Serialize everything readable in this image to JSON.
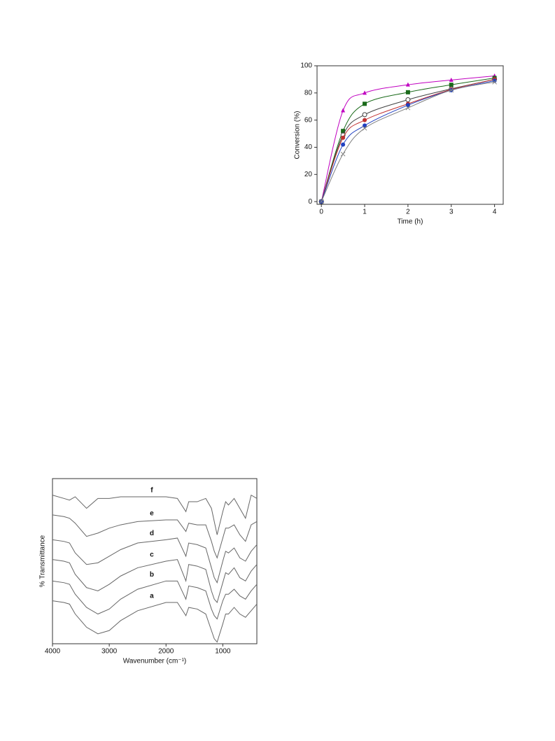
{
  "chart_data": [
    {
      "type": "line",
      "smooth": true,
      "xlabel": "Time (h)",
      "ylabel": "Conversion (%)",
      "x": [
        0,
        0.5,
        1,
        2,
        3,
        4
      ],
      "series": [
        {
          "color": "#c000c0",
          "marker": "triangle",
          "values": [
            0,
            67,
            80,
            86,
            89.5,
            92.5
          ]
        },
        {
          "color": "#1a6a1a",
          "marker": "square",
          "values": [
            0,
            52,
            72,
            80.5,
            86,
            91
          ]
        },
        {
          "color": "#404040",
          "marker": "open-circle",
          "values": [
            0,
            49,
            64,
            75,
            83,
            90
          ]
        },
        {
          "color": "#c03030",
          "marker": "circle",
          "values": [
            0,
            47,
            60,
            72,
            82.5,
            90
          ]
        },
        {
          "color": "#2040c0",
          "marker": "circle",
          "values": [
            0,
            42,
            56,
            71,
            82,
            89
          ]
        },
        {
          "color": "#808080",
          "marker": "cross",
          "values": [
            0,
            35,
            54,
            69,
            82,
            88
          ]
        }
      ],
      "xlim": [
        -0.1,
        4.2
      ],
      "xticks": [
        0,
        1,
        2,
        3,
        4
      ],
      "ylim": [
        -2,
        100
      ],
      "yticks": [
        0,
        20,
        40,
        60,
        80,
        100
      ]
    },
    {
      "type": "line",
      "smooth": false,
      "xlabel": "Wavenumber (cm⁻¹)",
      "ylabel": "% Transmittance",
      "x": [
        4000,
        3800,
        3700,
        3600,
        3400,
        3200,
        3000,
        2800,
        2500,
        2000,
        1800,
        1650,
        1600,
        1450,
        1300,
        1200,
        1150,
        1100,
        1000,
        950,
        900,
        800,
        700,
        600,
        500,
        400
      ],
      "series": [
        {
          "name": "f",
          "color": "#666666",
          "values": [
            90,
            88,
            87,
            89,
            82,
            88,
            88,
            89,
            89,
            89,
            88,
            80,
            86,
            86,
            88,
            82,
            74,
            66,
            80,
            86,
            84,
            88,
            82,
            76,
            90,
            88
          ]
        },
        {
          "name": "e",
          "color": "#666666",
          "values": [
            78,
            77,
            76,
            73,
            65,
            67,
            70,
            72,
            74,
            75,
            75,
            68,
            73,
            72,
            72,
            62,
            56,
            52,
            64,
            70,
            70,
            72,
            66,
            62,
            72,
            74
          ]
        },
        {
          "name": "d",
          "color": "#666666",
          "values": [
            63,
            62,
            61,
            55,
            48,
            49,
            53,
            57,
            61,
            63,
            64,
            53,
            61,
            60,
            58,
            46,
            40,
            37,
            50,
            56,
            55,
            58,
            52,
            50,
            56,
            60
          ]
        },
        {
          "name": "c",
          "color": "#666666",
          "values": [
            51,
            50,
            49,
            42,
            34,
            32,
            36,
            41,
            46,
            50,
            51,
            38,
            48,
            47,
            45,
            32,
            27,
            25,
            37,
            43,
            42,
            46,
            40,
            38,
            44,
            48
          ]
        },
        {
          "name": "b",
          "color": "#666666",
          "values": [
            38,
            37,
            36,
            30,
            22,
            18,
            21,
            27,
            33,
            38,
            38,
            27,
            35,
            34,
            32,
            21,
            17,
            15,
            26,
            30,
            30,
            33,
            29,
            27,
            32,
            36
          ]
        },
        {
          "name": "a",
          "color": "#666666",
          "values": [
            26,
            25,
            24,
            18,
            10,
            6,
            8,
            14,
            20,
            25,
            25,
            17,
            22,
            21,
            18,
            8,
            3,
            1,
            12,
            18,
            18,
            22,
            18,
            16,
            20,
            24
          ]
        }
      ],
      "xlim": [
        4000,
        400
      ],
      "xticks": [
        4000,
        3000,
        2000,
        1000
      ],
      "ylim": [
        0,
        100
      ]
    }
  ]
}
